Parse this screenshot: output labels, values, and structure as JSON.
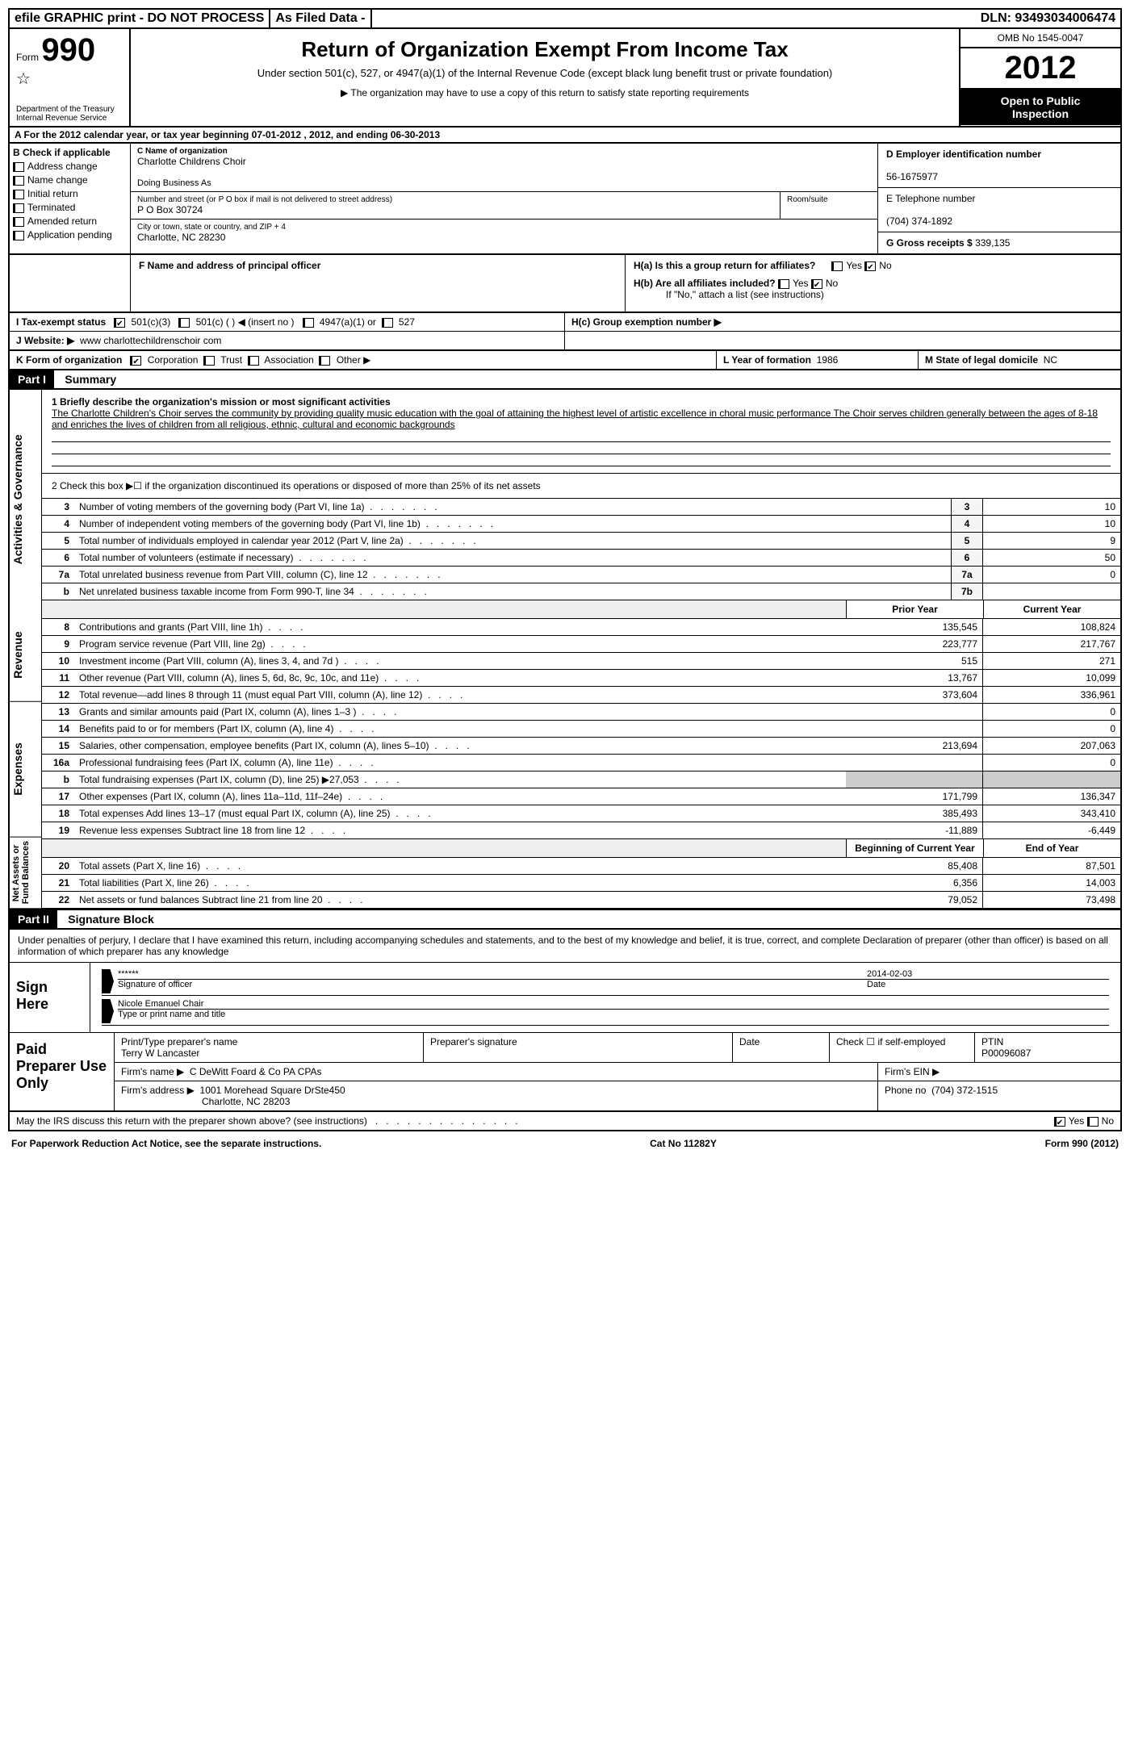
{
  "topbar": {
    "efile": "efile GRAPHIC print - DO NOT PROCESS",
    "asfiled": "As Filed Data -",
    "dln_label": "DLN:",
    "dln": "93493034006474"
  },
  "header": {
    "form_prefix": "Form",
    "form_number": "990",
    "dept1": "Department of the Treasury",
    "dept2": "Internal Revenue Service",
    "title": "Return of Organization Exempt From Income Tax",
    "subtitle": "Under section 501(c), 527, or 4947(a)(1) of the Internal Revenue Code (except black lung benefit trust or private foundation)",
    "note": "▶ The organization may have to use a copy of this return to satisfy state reporting requirements",
    "omb": "OMB No 1545-0047",
    "year": "2012",
    "open1": "Open to Public",
    "open2": "Inspection"
  },
  "rowA": "A  For the 2012 calendar year, or tax year beginning 07-01-2012    , 2012, and ending 06-30-2013",
  "colB": {
    "title": "B  Check if applicable",
    "items": [
      "Address change",
      "Name change",
      "Initial return",
      "Terminated",
      "Amended return",
      "Application pending"
    ]
  },
  "colC": {
    "name_label": "C Name of organization",
    "name": "Charlotte Childrens Choir",
    "dba_label": "Doing Business As",
    "street_label": "Number and street (or P O  box if mail is not delivered to street address)",
    "street": "P O Box 30724",
    "room_label": "Room/suite",
    "city_label": "City or town, state or country, and ZIP + 4",
    "city": "Charlotte, NC  28230"
  },
  "colD": {
    "ein_label": "D Employer identification number",
    "ein": "56-1675977",
    "phone_label": "E Telephone number",
    "phone": "(704) 374-1892",
    "gross_label": "G Gross receipts $",
    "gross": "339,135"
  },
  "colF": {
    "label": "F  Name and address of principal officer"
  },
  "colH": {
    "ha": "H(a)  Is this a group return for affiliates?",
    "hb": "H(b)  Are all affiliates included?",
    "hb_note": "If \"No,\" attach a list  (see instructions)",
    "hc": "H(c)  Group exemption number ▶",
    "yes": "Yes",
    "no": "No"
  },
  "rowI": {
    "label": "I  Tax-exempt status",
    "opt1": "501(c)(3)",
    "opt2": "501(c) (   ) ◀ (insert no )",
    "opt3": "4947(a)(1) or",
    "opt4": "527"
  },
  "rowJ": {
    "label": "J  Website: ▶",
    "value": "www charlottechildrenschoir com"
  },
  "rowK": {
    "label": "K Form of organization",
    "opt1": "Corporation",
    "opt2": "Trust",
    "opt3": "Association",
    "opt4": "Other ▶",
    "L_label": "L Year of formation",
    "L_val": "1986",
    "M_label": "M State of legal domicile",
    "M_val": "NC"
  },
  "part1": {
    "hdr": "Part I",
    "title": "Summary",
    "tab_ag": "Activities & Governance",
    "tab_rev": "Revenue",
    "tab_exp": "Expenses",
    "tab_na": "Net Assets or Fund Balances",
    "l1_label": "1   Briefly describe the organization's mission or most significant activities",
    "l1_text": "The Charlotte Children's Choir serves the community by providing quality music education with the goal of attaining the highest level of artistic excellence in choral music performance  The Choir serves children generally between the ages of 8-18 and enriches the lives of children from all religious, ethnic, cultural and economic backgrounds",
    "l2": "2   Check this box ▶☐ if the organization discontinued its operations or disposed of more than 25% of its net assets",
    "lines_gov": [
      {
        "n": "3",
        "t": "Number of voting members of the governing body (Part VI, line 1a)",
        "box": "3",
        "v": "10"
      },
      {
        "n": "4",
        "t": "Number of independent voting members of the governing body (Part VI, line 1b)",
        "box": "4",
        "v": "10"
      },
      {
        "n": "5",
        "t": "Total number of individuals employed in calendar year 2012 (Part V, line 2a)",
        "box": "5",
        "v": "9"
      },
      {
        "n": "6",
        "t": "Total number of volunteers (estimate if necessary)",
        "box": "6",
        "v": "50"
      },
      {
        "n": "7a",
        "t": "Total unrelated business revenue from Part VIII, column (C), line 12",
        "box": "7a",
        "v": "0"
      },
      {
        "n": "b",
        "t": "Net unrelated business taxable income from Form 990-T, line 34",
        "box": "7b",
        "v": ""
      }
    ],
    "col_prior": "Prior Year",
    "col_curr": "Current Year",
    "lines_rev": [
      {
        "n": "8",
        "t": "Contributions and grants (Part VIII, line 1h)",
        "p": "135,545",
        "c": "108,824"
      },
      {
        "n": "9",
        "t": "Program service revenue (Part VIII, line 2g)",
        "p": "223,777",
        "c": "217,767"
      },
      {
        "n": "10",
        "t": "Investment income (Part VIII, column (A), lines 3, 4, and 7d )",
        "p": "515",
        "c": "271"
      },
      {
        "n": "11",
        "t": "Other revenue (Part VIII, column (A), lines 5, 6d, 8c, 9c, 10c, and 11e)",
        "p": "13,767",
        "c": "10,099"
      },
      {
        "n": "12",
        "t": "Total revenue—add lines 8 through 11 (must equal Part VIII, column (A), line 12)",
        "p": "373,604",
        "c": "336,961"
      }
    ],
    "lines_exp": [
      {
        "n": "13",
        "t": "Grants and similar amounts paid (Part IX, column (A), lines 1–3 )",
        "p": "",
        "c": "0"
      },
      {
        "n": "14",
        "t": "Benefits paid to or for members (Part IX, column (A), line 4)",
        "p": "",
        "c": "0"
      },
      {
        "n": "15",
        "t": "Salaries, other compensation, employee benefits (Part IX, column (A), lines 5–10)",
        "p": "213,694",
        "c": "207,063"
      },
      {
        "n": "16a",
        "t": "Professional fundraising fees (Part IX, column (A), line 11e)",
        "p": "",
        "c": "0"
      },
      {
        "n": "b",
        "t": "Total fundraising expenses (Part IX, column (D), line 25) ▶27,053",
        "p": "",
        "c": "",
        "nofill": true
      },
      {
        "n": "17",
        "t": "Other expenses (Part IX, column (A), lines 11a–11d, 11f–24e)",
        "p": "171,799",
        "c": "136,347"
      },
      {
        "n": "18",
        "t": "Total expenses  Add lines 13–17 (must equal Part IX, column (A), line 25)",
        "p": "385,493",
        "c": "343,410"
      },
      {
        "n": "19",
        "t": "Revenue less expenses  Subtract line 18 from line 12",
        "p": "-11,889",
        "c": "-6,449"
      }
    ],
    "col_beg": "Beginning of Current Year",
    "col_end": "End of Year",
    "lines_na": [
      {
        "n": "20",
        "t": "Total assets (Part X, line 16)",
        "p": "85,408",
        "c": "87,501"
      },
      {
        "n": "21",
        "t": "Total liabilities (Part X, line 26)",
        "p": "6,356",
        "c": "14,003"
      },
      {
        "n": "22",
        "t": "Net assets or fund balances  Subtract line 21 from line 20",
        "p": "79,052",
        "c": "73,498"
      }
    ]
  },
  "part2": {
    "hdr": "Part II",
    "title": "Signature Block",
    "text": "Under penalties of perjury, I declare that I have examined this return, including accompanying schedules and statements, and to the best of my knowledge and belief, it is true, correct, and complete  Declaration of preparer (other than officer) is based on all information of which preparer has any knowledge",
    "sign_here": "Sign Here",
    "sig_stars": "******",
    "sig_officer": "Signature of officer",
    "sig_date": "2014-02-03",
    "date_label": "Date",
    "officer_name": "Nicole Emanuel Chair",
    "name_label": "Type or print name and title",
    "paid": "Paid Preparer Use Only",
    "prep_name_label": "Print/Type preparer's name",
    "prep_name": "Terry W Lancaster",
    "prep_sig_label": "Preparer's signature",
    "prep_date_label": "Date",
    "check_label": "Check ☐ if self-employed",
    "ptin_label": "PTIN",
    "ptin": "P00096087",
    "firm_name_label": "Firm's name    ▶",
    "firm_name": "C DeWitt Foard & Co PA CPAs",
    "firm_ein_label": "Firm's EIN ▶",
    "firm_addr_label": "Firm's address ▶",
    "firm_addr1": "1001 Morehead Square DrSte450",
    "firm_addr2": "Charlotte, NC  28203",
    "firm_phone_label": "Phone no",
    "firm_phone": "(704) 372-1515",
    "discuss": "May the IRS discuss this return with the preparer shown above? (see instructions)",
    "discuss_yes": "Yes",
    "discuss_no": "No"
  },
  "footer": {
    "left": "For Paperwork Reduction Act Notice, see the separate instructions.",
    "mid": "Cat No 11282Y",
    "right": "Form 990 (2012)"
  }
}
